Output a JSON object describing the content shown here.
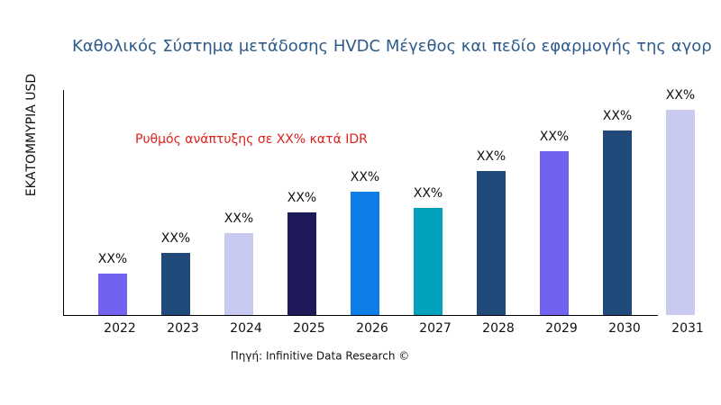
{
  "chart_data": {
    "type": "bar",
    "title": "Καθολικός Σύστημα μετάδοσης HVDC Μέγεθος και πεδίο εφαρμογής της αγορ",
    "y_label": "ΕΚΑΤΟΜΜΥΡΙΑ USD",
    "annotation": "Ρυθμός ανάπτυξης σε XX% κατά IDR",
    "source": "Πηγή: Infinitive Data Research ©",
    "categories": [
      "2022",
      "2023",
      "2024",
      "2025",
      "2026",
      "2027",
      "2028",
      "2029",
      "2030",
      "2031"
    ],
    "values": [
      46,
      69,
      91,
      114,
      137,
      119,
      160,
      182,
      205,
      228
    ],
    "value_labels": [
      "XX%",
      "XX%",
      "XX%",
      "XX%",
      "XX%",
      "XX%",
      "XX%",
      "XX%",
      "XX%",
      "XX%"
    ],
    "colors": [
      "#7262f2",
      "#1f4a7a",
      "#c9caf0",
      "#1e1a5a",
      "#0f7de8",
      "#02a2bd",
      "#1f4a7a",
      "#7262f2",
      "#1f4a7a",
      "#c9caf0"
    ],
    "ylim": [
      0,
      250
    ]
  }
}
